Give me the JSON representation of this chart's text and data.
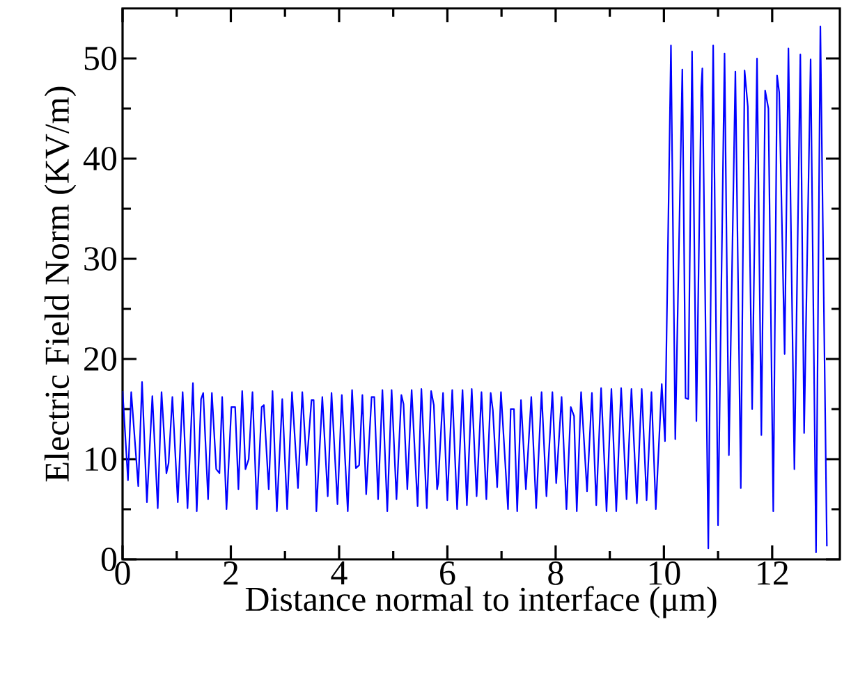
{
  "chart_data": {
    "type": "line",
    "xlabel": "Distance normal to interface (μm)",
    "ylabel": "Electric Field Norm (KV/m)",
    "xlim": [
      0,
      13.25
    ],
    "ylim": [
      0,
      55
    ],
    "xticks": [
      0,
      2,
      4,
      6,
      8,
      10,
      12
    ],
    "yticks": [
      0,
      10,
      20,
      30,
      40,
      50
    ],
    "grid": false,
    "marker": "none",
    "line_style": "solid",
    "series": [
      {
        "color": "#0000ff",
        "x": [
          0.0,
          0.1,
          0.16,
          0.29,
          0.36,
          0.45,
          0.55,
          0.65,
          0.72,
          0.81,
          0.85,
          0.92,
          1.02,
          1.11,
          1.2,
          1.3,
          1.37,
          1.45,
          1.49,
          1.58,
          1.65,
          1.73,
          1.79,
          1.84,
          1.92,
          2.01,
          2.08,
          2.14,
          2.21,
          2.27,
          2.33,
          2.4,
          2.48,
          2.57,
          2.61,
          2.7,
          2.77,
          2.85,
          2.95,
          3.04,
          3.13,
          3.24,
          3.32,
          3.4,
          3.49,
          3.53,
          3.58,
          3.69,
          3.79,
          3.86,
          3.97,
          4.05,
          4.16,
          4.24,
          4.31,
          4.37,
          4.43,
          4.5,
          4.6,
          4.65,
          4.72,
          4.8,
          4.89,
          4.97,
          5.06,
          5.15,
          5.19,
          5.26,
          5.34,
          5.45,
          5.52,
          5.62,
          5.7,
          5.75,
          5.81,
          5.83,
          5.92,
          6.0,
          6.09,
          6.18,
          6.28,
          6.36,
          6.45,
          6.54,
          6.63,
          6.72,
          6.8,
          6.84,
          6.92,
          6.99,
          7.12,
          7.17,
          7.23,
          7.29,
          7.36,
          7.45,
          7.55,
          7.64,
          7.74,
          7.83,
          7.94,
          8.01,
          8.11,
          8.2,
          8.28,
          8.34,
          8.39,
          8.47,
          8.58,
          8.67,
          8.75,
          8.84,
          8.94,
          9.03,
          9.12,
          9.21,
          9.31,
          9.4,
          9.5,
          9.59,
          9.68,
          9.77,
          9.85,
          9.96,
          10.02,
          10.13,
          10.21,
          10.34,
          10.4,
          10.45,
          10.52,
          10.6,
          10.69,
          10.71,
          10.82,
          10.91,
          11.0,
          11.12,
          11.2,
          11.32,
          11.42,
          11.49,
          11.55,
          11.63,
          11.72,
          11.8,
          11.87,
          11.93,
          12.02,
          12.09,
          12.13,
          12.23,
          12.3,
          12.41,
          12.52,
          12.59,
          12.71,
          12.81,
          12.89,
          13.01
        ],
        "values": [
          16.8,
          7.9,
          16.7,
          7.3,
          17.7,
          5.7,
          16.3,
          5.1,
          16.7,
          8.6,
          9.6,
          16.2,
          5.7,
          16.7,
          5.1,
          17.6,
          4.8,
          16.0,
          16.6,
          6.0,
          16.6,
          9.0,
          8.6,
          16.2,
          5.0,
          15.2,
          15.2,
          7.0,
          16.8,
          9.0,
          10.0,
          16.7,
          5.0,
          15.2,
          15.4,
          7.0,
          16.8,
          4.8,
          16.0,
          5.0,
          16.7,
          7.1,
          16.7,
          9.4,
          15.9,
          15.9,
          4.8,
          16.2,
          6.3,
          16.6,
          5.5,
          16.4,
          4.8,
          16.9,
          9.1,
          9.4,
          16.4,
          6.5,
          16.2,
          16.2,
          6.0,
          16.9,
          4.8,
          16.9,
          6.0,
          16.4,
          15.5,
          7.0,
          16.9,
          5.3,
          17.0,
          5.1,
          16.8,
          15.4,
          7.0,
          7.6,
          16.6,
          5.9,
          16.9,
          5.0,
          16.9,
          5.4,
          17.0,
          6.3,
          16.7,
          6.0,
          16.6,
          14.9,
          7.2,
          16.7,
          5.0,
          15.0,
          15.0,
          4.8,
          15.9,
          7.0,
          16.2,
          5.1,
          16.7,
          6.3,
          16.7,
          7.6,
          16.2,
          5.0,
          15.2,
          14.3,
          4.8,
          16.7,
          6.8,
          16.6,
          5.4,
          17.1,
          4.8,
          17.0,
          4.8,
          17.1,
          6.0,
          17.0,
          5.6,
          17.0,
          5.9,
          16.7,
          5.0,
          17.5,
          11.8,
          51.3,
          12.0,
          48.9,
          16.1,
          16.0,
          50.7,
          13.8,
          47.1,
          49.0,
          1.1,
          51.3,
          3.4,
          50.5,
          10.4,
          48.7,
          7.1,
          48.8,
          45.2,
          15.0,
          50.0,
          12.4,
          46.8,
          45.0,
          4.8,
          48.3,
          46.6,
          20.5,
          51.0,
          9.0,
          50.4,
          12.6,
          49.9,
          0.7,
          53.2,
          1.3
        ]
      }
    ]
  }
}
